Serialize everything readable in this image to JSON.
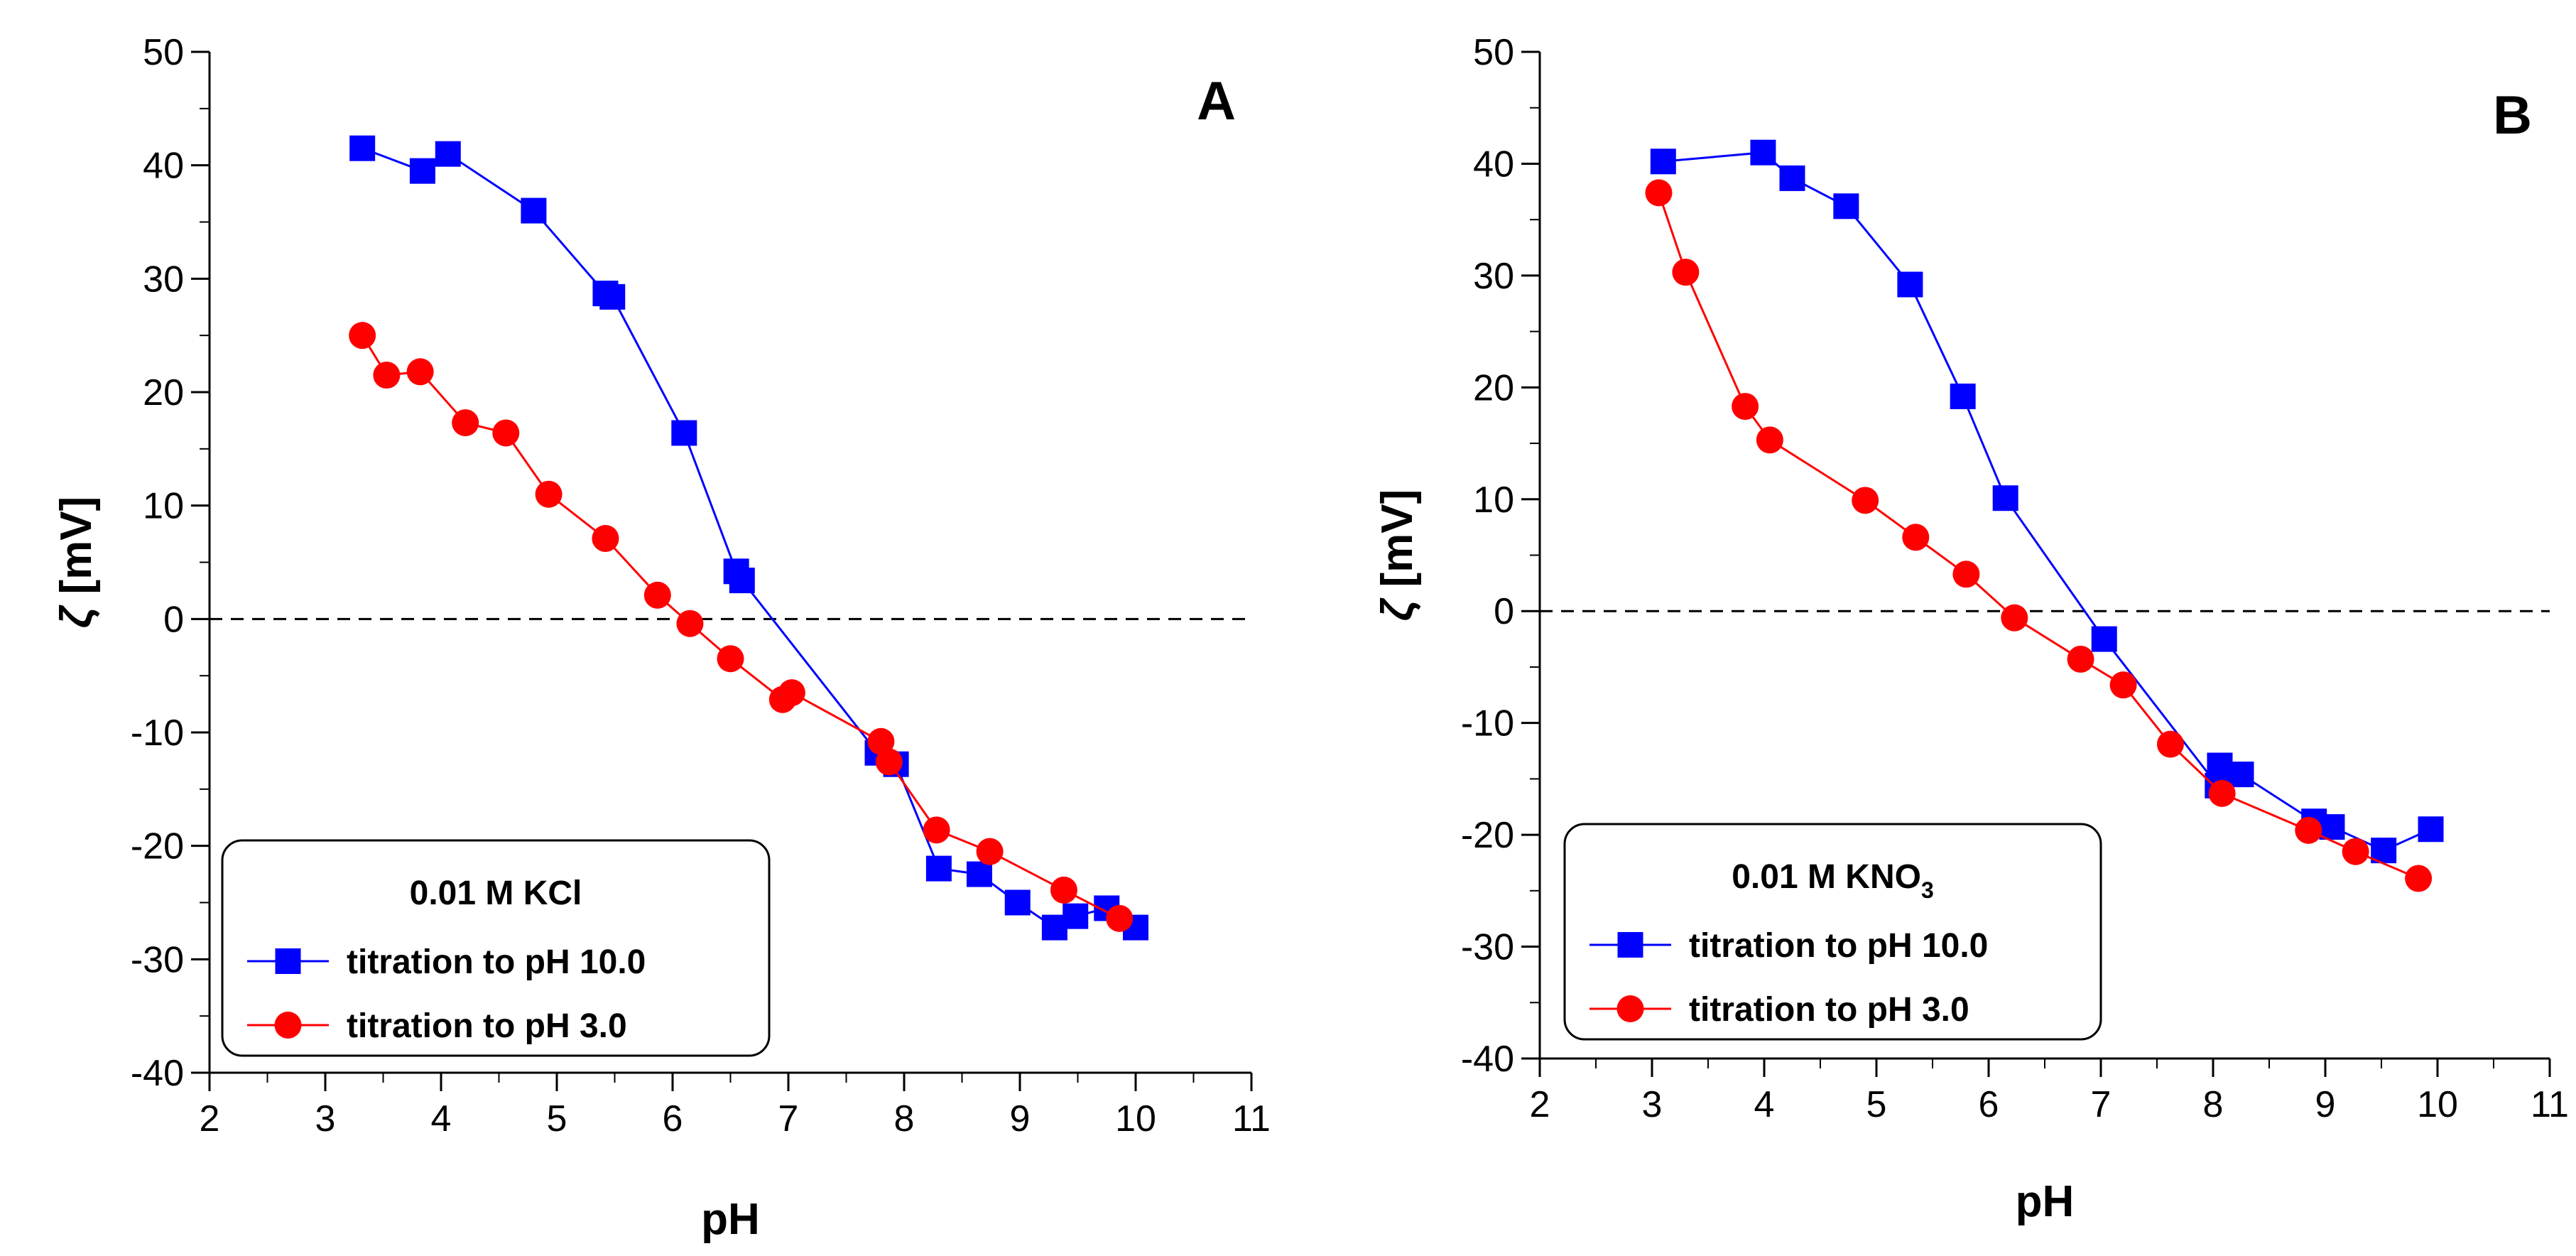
{
  "chart_data": [
    {
      "type": "line",
      "panel_label": "A",
      "xlabel": "pH",
      "ylabel_symbol": "ζ",
      "ylabel_unit": "[mV]",
      "xlim": [
        2,
        11
      ],
      "ylim": [
        -40,
        50
      ],
      "xticks": [
        2,
        3,
        4,
        5,
        6,
        7,
        8,
        9,
        10,
        11
      ],
      "yticks": [
        -40,
        -30,
        -20,
        -10,
        0,
        10,
        20,
        30,
        40,
        50
      ],
      "reference_line": 0,
      "legend": {
        "title_parts": [
          {
            "t": "0.01 M KCl"
          }
        ],
        "placement": "bottom-left"
      },
      "series": [
        {
          "name": "titration to pH 10.0",
          "color": "#0000ff",
          "marker": "square",
          "x": [
            3.32,
            3.84,
            4.06,
            4.8,
            5.42,
            5.48,
            6.1,
            6.55,
            6.6,
            7.77,
            7.93,
            8.3,
            8.65,
            8.98,
            9.3,
            9.48,
            9.75,
            10.0
          ],
          "y": [
            41.5,
            39.5,
            41.0,
            36.0,
            28.7,
            28.4,
            16.4,
            4.2,
            3.4,
            -11.8,
            -12.8,
            -22.0,
            -22.5,
            -25.0,
            -27.2,
            -26.2,
            -25.5,
            -27.2
          ]
        },
        {
          "name": "titration to pH 3.0",
          "color": "#ff0000",
          "marker": "circle",
          "x": [
            3.32,
            3.53,
            3.82,
            4.21,
            4.56,
            4.93,
            5.42,
            5.87,
            6.15,
            6.5,
            6.95,
            7.03,
            7.8,
            7.87,
            8.28,
            8.74,
            9.38,
            9.86
          ],
          "y": [
            25.0,
            21.5,
            21.8,
            17.3,
            16.4,
            11.0,
            7.1,
            2.1,
            -0.4,
            -3.5,
            -7.1,
            -6.5,
            -10.8,
            -12.6,
            -18.6,
            -20.5,
            -23.9,
            -26.4
          ]
        }
      ]
    },
    {
      "type": "line",
      "panel_label": "B",
      "xlabel": "pH",
      "ylabel_symbol": "ζ",
      "ylabel_unit": "[mV]",
      "xlim": [
        2,
        11
      ],
      "ylim": [
        -40,
        50
      ],
      "xticks": [
        2,
        3,
        4,
        5,
        6,
        7,
        8,
        9,
        10,
        11
      ],
      "yticks": [
        -40,
        -30,
        -20,
        -10,
        0,
        10,
        20,
        30,
        40,
        50
      ],
      "reference_line": 0,
      "legend": {
        "title_parts": [
          {
            "t": "0.01 M KNO"
          },
          {
            "t": "3",
            "sub": true
          }
        ],
        "placement": "bottom-left"
      },
      "series": [
        {
          "name": "titration to pH 10.0",
          "color": "#0000ff",
          "marker": "square",
          "x": [
            3.1,
            3.99,
            4.25,
            4.73,
            5.3,
            5.77,
            6.15,
            7.03,
            8.04,
            8.06,
            8.25,
            8.9,
            9.06,
            9.52,
            9.94
          ],
          "y": [
            40.2,
            41.0,
            38.7,
            36.2,
            29.2,
            19.2,
            10.1,
            -2.5,
            -15.6,
            -13.8,
            -14.6,
            -18.8,
            -19.3,
            -21.4,
            -19.5
          ]
        },
        {
          "name": "titration to pH 3.0",
          "color": "#ff0000",
          "marker": "circle",
          "x": [
            3.06,
            3.3,
            3.83,
            4.05,
            4.9,
            5.35,
            5.8,
            6.23,
            6.82,
            7.2,
            7.62,
            8.08,
            8.85,
            9.27,
            9.83
          ],
          "y": [
            37.4,
            30.3,
            18.3,
            15.3,
            9.9,
            6.6,
            3.3,
            -0.6,
            -4.3,
            -6.6,
            -11.9,
            -16.3,
            -19.6,
            -21.5,
            -23.9
          ]
        }
      ]
    }
  ]
}
